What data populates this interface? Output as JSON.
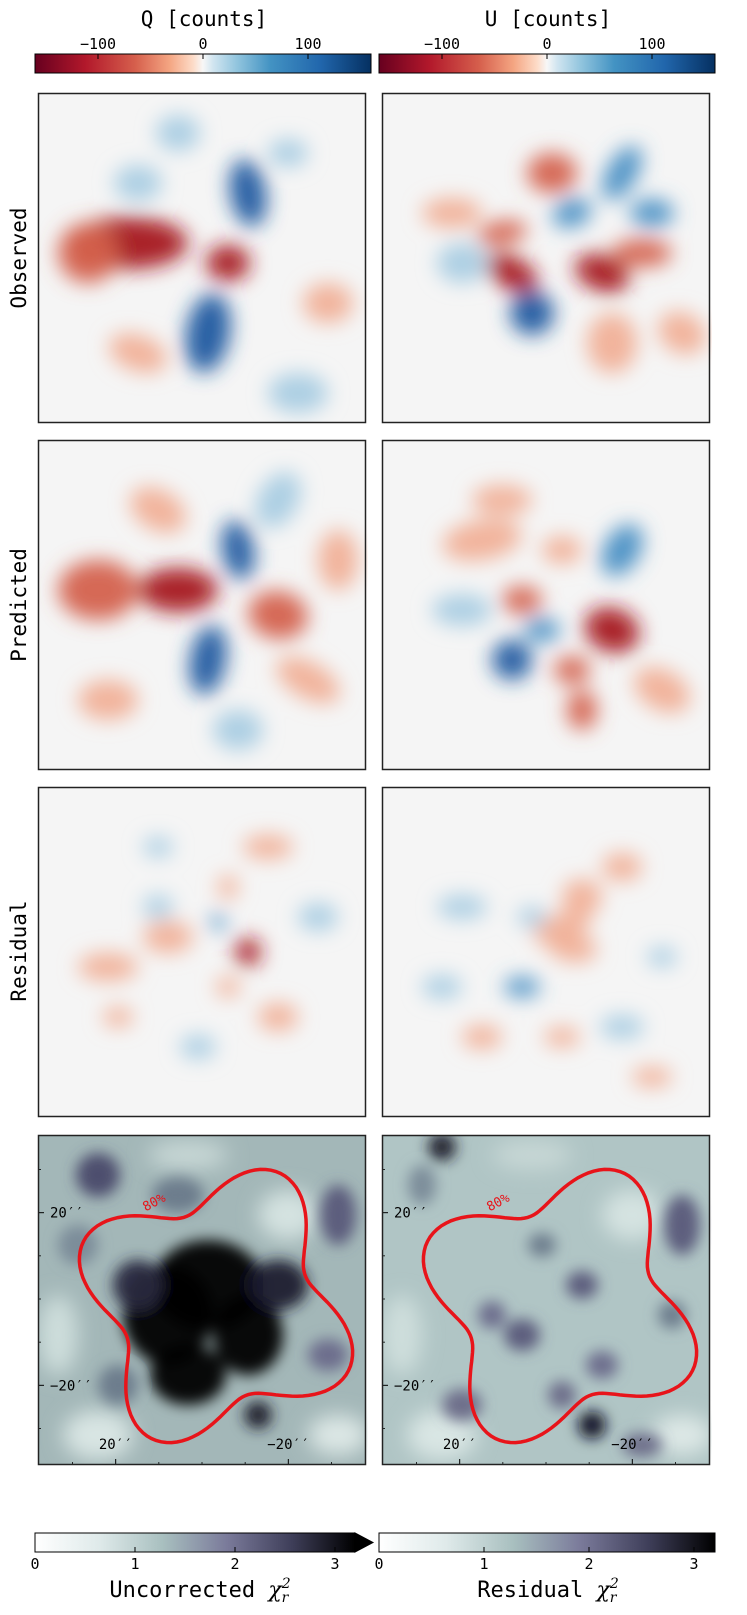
{
  "figure": {
    "columns": [
      {
        "id": "q",
        "title": "Q [counts]"
      },
      {
        "id": "u",
        "title": "U [counts]"
      }
    ],
    "rows": [
      {
        "id": "observed",
        "label": "Observed"
      },
      {
        "id": "predicted",
        "label": "Predicted"
      },
      {
        "id": "residual",
        "label": "Residual"
      },
      {
        "id": "chi2",
        "label": ""
      }
    ],
    "top_colorbar": {
      "cmap": "diverging red-white-blue",
      "low_color": "#67001f",
      "mid_color": "#f7f7f7",
      "high_color": "#053061",
      "range": [
        -160,
        160
      ],
      "ticks": [
        {
          "value": -100,
          "label": "−100"
        },
        {
          "value": 0,
          "label": "0"
        },
        {
          "value": 100,
          "label": "100"
        }
      ]
    },
    "bottom_colorbars": [
      {
        "label_prefix": "Uncorrected",
        "symbol": "χ",
        "sub": "r",
        "sup": "2",
        "range": [
          0,
          3.2
        ],
        "ticks": [
          {
            "value": 0,
            "label": "0"
          },
          {
            "value": 1,
            "label": "1"
          },
          {
            "value": 2,
            "label": "2"
          },
          {
            "value": 3,
            "label": "3"
          }
        ],
        "extend": "max"
      },
      {
        "label_prefix": "Residual",
        "symbol": "χ",
        "sub": "r",
        "sup": "2",
        "range": [
          0,
          3.2
        ],
        "ticks": [
          {
            "value": 0,
            "label": "0"
          },
          {
            "value": 1,
            "label": "1"
          },
          {
            "value": 2,
            "label": "2"
          },
          {
            "value": 3,
            "label": "3"
          }
        ],
        "extend": "none"
      }
    ],
    "chi2_axes": {
      "y_ticks": [
        {
          "value": 20,
          "label": "20′′"
        },
        {
          "value": -20,
          "label": "−20′′"
        }
      ],
      "x_ticks": [
        {
          "value": 20,
          "label": "20′′"
        },
        {
          "value": -20,
          "label": "−20′′"
        }
      ],
      "extent": [
        38,
        -38
      ],
      "contour": {
        "label": "80%",
        "color": "#e8141a",
        "mean_radius": 28,
        "amplitude": 0.22,
        "lobes": 4
      }
    }
  },
  "chart_data": [
    {
      "type": "heatmap",
      "title": "Q [counts]",
      "row": "Observed",
      "cmap": "diverging",
      "range": [
        -160,
        160
      ]
    },
    {
      "type": "heatmap",
      "title": "U [counts]",
      "row": "Observed",
      "cmap": "diverging",
      "range": [
        -160,
        160
      ]
    },
    {
      "type": "heatmap",
      "title": "Q [counts]",
      "row": "Predicted",
      "cmap": "diverging",
      "range": [
        -160,
        160
      ]
    },
    {
      "type": "heatmap",
      "title": "U [counts]",
      "row": "Predicted",
      "cmap": "diverging",
      "range": [
        -160,
        160
      ]
    },
    {
      "type": "heatmap",
      "title": "Q [counts]",
      "row": "Residual",
      "cmap": "diverging",
      "range": [
        -160,
        160
      ]
    },
    {
      "type": "heatmap",
      "title": "U [counts]",
      "row": "Residual",
      "cmap": "diverging",
      "range": [
        -160,
        160
      ]
    },
    {
      "type": "heatmap",
      "title": "Uncorrected χ²_r",
      "cmap": "bone_r",
      "range": [
        0,
        3.2
      ],
      "contour_label": "80%"
    },
    {
      "type": "heatmap",
      "title": "Residual χ²_r",
      "cmap": "bone_r",
      "range": [
        0,
        3.2
      ],
      "contour_label": "80%"
    }
  ]
}
